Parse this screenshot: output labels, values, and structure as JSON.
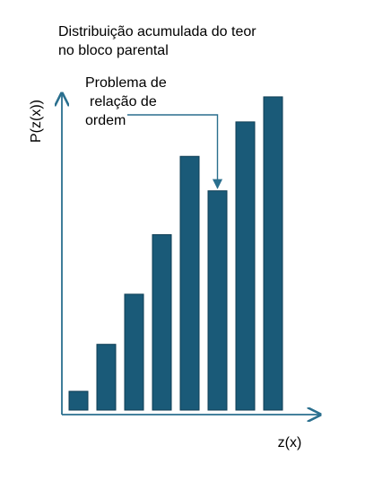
{
  "chart_data": {
    "type": "bar",
    "title_lines": [
      "Distribuição acumulada do teor",
      "no bloco parental"
    ],
    "xlabel": "z(x)",
    "ylabel": "P(z(x))",
    "values": [
      0.06,
      0.21,
      0.37,
      0.56,
      0.81,
      0.7,
      0.92,
      1.0
    ],
    "ylim": [
      0,
      1.08
    ],
    "annotation": {
      "lines": [
        "Problema de",
        "relação de",
        "ordem"
      ],
      "target_index": 5
    },
    "grid": false,
    "colors": {
      "bar_fill": "#1a5a78",
      "bar_stroke": "#0f3e55",
      "axis": "#2a6f8e",
      "arrow": "#2a6f8e"
    }
  }
}
